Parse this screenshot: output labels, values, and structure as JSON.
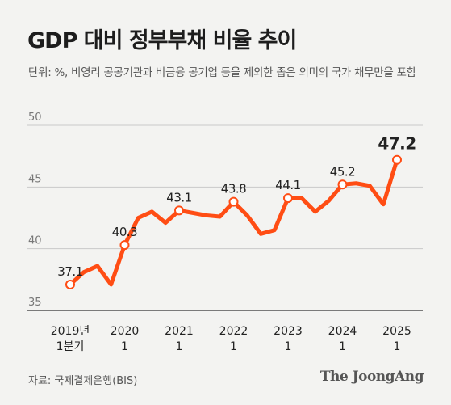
{
  "header": {
    "title": "GDP 대비 정부부채 비율 추이",
    "subtitle": "단위: %, 비영리 공공기관과 비금융 공기업 등을 제외한 좁은 의미의 국가 채무만을 포함"
  },
  "footer": {
    "source": "자료: 국제결제은행(BIS)",
    "brand": "The JoongAng"
  },
  "chart_data": {
    "type": "line",
    "ylim": [
      35,
      50
    ],
    "yticks": [
      35,
      40,
      45,
      50
    ],
    "grid": true,
    "line_color": "#ff4d14",
    "x_tick_labels": [
      {
        "index": 0,
        "lines": [
          "2019년",
          "1분기"
        ]
      },
      {
        "index": 4,
        "lines": [
          "2020",
          "1"
        ]
      },
      {
        "index": 8,
        "lines": [
          "2021",
          "1"
        ]
      },
      {
        "index": 12,
        "lines": [
          "2022",
          "1"
        ]
      },
      {
        "index": 16,
        "lines": [
          "2023",
          "1"
        ]
      },
      {
        "index": 20,
        "lines": [
          "2024",
          "1"
        ]
      },
      {
        "index": 24,
        "lines": [
          "2025",
          "1"
        ]
      }
    ],
    "values": [
      37.1,
      38.1,
      38.6,
      37.1,
      40.3,
      42.5,
      43.0,
      42.1,
      43.1,
      42.9,
      42.7,
      42.6,
      43.8,
      42.7,
      41.2,
      41.5,
      44.1,
      44.1,
      43.0,
      43.9,
      45.2,
      45.3,
      45.1,
      43.6,
      47.2
    ],
    "labeled_points": [
      {
        "index": 0,
        "label": "37.1"
      },
      {
        "index": 4,
        "label": "40.3"
      },
      {
        "index": 8,
        "label": "43.1"
      },
      {
        "index": 12,
        "label": "43.8"
      },
      {
        "index": 16,
        "label": "44.1"
      },
      {
        "index": 20,
        "label": "45.2"
      },
      {
        "index": 24,
        "label": "47.2"
      }
    ]
  }
}
